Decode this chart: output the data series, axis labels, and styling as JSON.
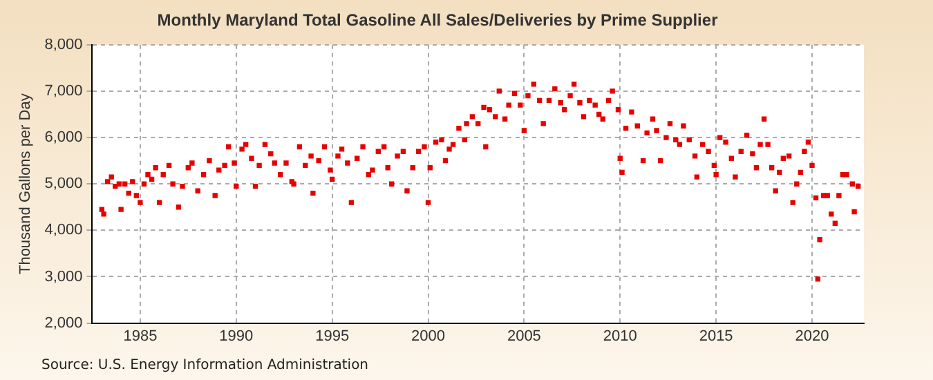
{
  "chart_data": {
    "type": "scatter",
    "title": "Monthly Maryland Total Gasoline All Sales/Deliveries by Prime Supplier",
    "ylabel": "Thousand Gallons per Day",
    "annotations": [
      "Source: U.S. Energy Information Administration"
    ],
    "x": [
      1983.0,
      1983.1,
      1983.3,
      1983.5,
      1983.7,
      1983.9,
      1984.0,
      1984.2,
      1984.4,
      1984.6,
      1984.8,
      1985.0,
      1985.2,
      1985.4,
      1985.6,
      1985.8,
      1986.0,
      1986.2,
      1986.5,
      1986.7,
      1987.0,
      1987.2,
      1987.5,
      1987.7,
      1988.0,
      1988.3,
      1988.6,
      1988.9,
      1989.1,
      1989.4,
      1989.6,
      1989.9,
      1990.0,
      1990.3,
      1990.5,
      1990.8,
      1991.0,
      1991.2,
      1991.5,
      1991.8,
      1992.0,
      1992.3,
      1992.6,
      1992.9,
      1993.0,
      1993.3,
      1993.6,
      1993.9,
      1994.0,
      1994.3,
      1994.6,
      1994.9,
      1995.0,
      1995.3,
      1995.5,
      1995.8,
      1996.0,
      1996.3,
      1996.6,
      1996.9,
      1997.1,
      1997.4,
      1997.7,
      1997.9,
      1998.1,
      1998.4,
      1998.7,
      1998.9,
      1999.2,
      1999.5,
      1999.8,
      2000.0,
      2000.1,
      2000.4,
      2000.7,
      2000.9,
      2001.1,
      2001.3,
      2001.6,
      2001.9,
      2002.0,
      2002.3,
      2002.6,
      2002.9,
      2003.0,
      2003.2,
      2003.5,
      2003.7,
      2004.0,
      2004.2,
      2004.5,
      2004.8,
      2005.0,
      2005.2,
      2005.5,
      2005.8,
      2006.0,
      2006.3,
      2006.6,
      2006.9,
      2007.1,
      2007.4,
      2007.6,
      2007.9,
      2008.1,
      2008.4,
      2008.7,
      2008.9,
      2009.1,
      2009.4,
      2009.6,
      2009.9,
      2010.0,
      2010.1,
      2010.3,
      2010.6,
      2010.9,
      2011.2,
      2011.4,
      2011.7,
      2011.9,
      2012.1,
      2012.4,
      2012.6,
      2012.9,
      2013.1,
      2013.3,
      2013.6,
      2013.9,
      2014.0,
      2014.3,
      2014.6,
      2014.9,
      2015.0,
      2015.2,
      2015.5,
      2015.8,
      2016.0,
      2016.3,
      2016.6,
      2016.9,
      2017.1,
      2017.3,
      2017.5,
      2017.7,
      2017.9,
      2018.1,
      2018.3,
      2018.5,
      2018.8,
      2019.0,
      2019.2,
      2019.4,
      2019.6,
      2019.8,
      2020.0,
      2020.2,
      2020.3,
      2020.4,
      2020.6,
      2020.8,
      2021.0,
      2021.2,
      2021.4,
      2021.6,
      2021.8,
      2022.1,
      2022.2,
      2022.4
    ],
    "series": [
      {
        "color": "#e60000",
        "values": [
          4450,
          4350,
          5050,
          5150,
          4950,
          5000,
          4450,
          5000,
          4800,
          5050,
          4750,
          4600,
          5000,
          5200,
          5100,
          5350,
          4600,
          5200,
          5400,
          5000,
          4500,
          4950,
          5350,
          5450,
          4850,
          5200,
          5500,
          4750,
          5300,
          5400,
          5800,
          5450,
          4950,
          5750,
          5850,
          5550,
          4950,
          5400,
          5850,
          5650,
          5450,
          5200,
          5450,
          5050,
          5000,
          5800,
          5400,
          5600,
          4800,
          5500,
          5800,
          5300,
          5100,
          5600,
          5750,
          5450,
          4600,
          5550,
          5800,
          5200,
          5300,
          5700,
          5800,
          5350,
          5000,
          5600,
          5700,
          4850,
          5350,
          5700,
          5800,
          4600,
          5350,
          5900,
          5950,
          5500,
          5750,
          5850,
          6200,
          5950,
          6300,
          6450,
          6300,
          6650,
          5800,
          6600,
          6450,
          7000,
          6400,
          6700,
          6950,
          6700,
          6150,
          6900,
          7150,
          6800,
          6300,
          6800,
          7050,
          6750,
          6600,
          6900,
          7150,
          6750,
          6450,
          6800,
          6700,
          6500,
          6400,
          6800,
          7000,
          6600,
          5550,
          5250,
          6200,
          6550,
          6250,
          5500,
          6100,
          6400,
          6150,
          5500,
          6000,
          6300,
          5950,
          5850,
          6250,
          5950,
          5600,
          5150,
          5850,
          5700,
          5400,
          5200,
          6000,
          5900,
          5550,
          5150,
          5700,
          6050,
          5650,
          5350,
          5850,
          6400,
          5850,
          5350,
          4850,
          5250,
          5550,
          5600,
          4600,
          5000,
          5250,
          5700,
          5900,
          5400,
          4700,
          2950,
          3800,
          4750,
          4750,
          4350,
          4150,
          4750,
          5200,
          5200,
          5000,
          4400,
          4950
        ]
      }
    ],
    "xlim": [
      1982.5,
      2022.7
    ],
    "xticks": [
      1985,
      1990,
      1995,
      2000,
      2005,
      2010,
      2015,
      2020
    ],
    "ylim": [
      2000,
      8000
    ],
    "yticks": [
      {
        "value": 2000,
        "label": "2,000"
      },
      {
        "value": 3000,
        "label": "3,000"
      },
      {
        "value": 4000,
        "label": "4,000"
      },
      {
        "value": 5000,
        "label": "5,000"
      },
      {
        "value": 6000,
        "label": "6,000"
      },
      {
        "value": 7000,
        "label": "7,000"
      },
      {
        "value": 8000,
        "label": "8,000"
      }
    ],
    "grid": true,
    "marker": "square"
  }
}
